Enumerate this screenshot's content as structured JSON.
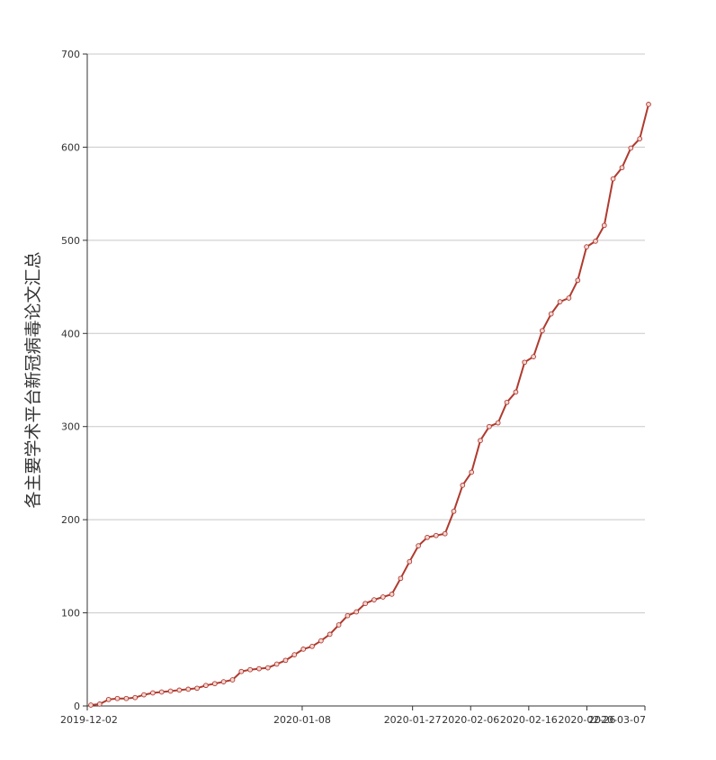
{
  "chart_data": {
    "type": "line",
    "ylabel": "各主要学术平台新冠病毒论文汇总",
    "xlabel": "",
    "title": "",
    "ylim": [
      0,
      700
    ],
    "yticks": [
      0,
      100,
      200,
      300,
      400,
      500,
      600,
      700
    ],
    "xlim": [
      "2019-12-02",
      "2020-03-07"
    ],
    "xtick_labels": [
      "2019-12-02",
      "2020-01-08",
      "2020-01-27",
      "2020-02-06",
      "2020-02-16",
      "2020-02-26",
      "2020-03-07"
    ],
    "grid": true,
    "line_color": "#b03a2e",
    "marker_fill": "#f4d6d3",
    "series": [
      {
        "values": [
          1,
          2,
          7,
          8,
          8,
          9,
          12,
          14,
          15,
          16,
          17,
          18,
          19,
          22,
          24,
          26,
          28,
          37,
          39,
          40,
          41,
          45,
          49,
          55,
          61,
          64,
          70,
          77,
          87,
          97,
          101,
          110,
          114,
          117,
          120,
          137,
          155,
          172,
          181,
          183,
          185,
          209,
          237,
          251,
          285,
          300,
          304,
          326,
          337,
          369,
          375,
          403,
          421,
          434,
          438,
          457,
          493,
          499,
          516,
          566,
          578,
          599,
          609,
          646
        ]
      }
    ]
  }
}
